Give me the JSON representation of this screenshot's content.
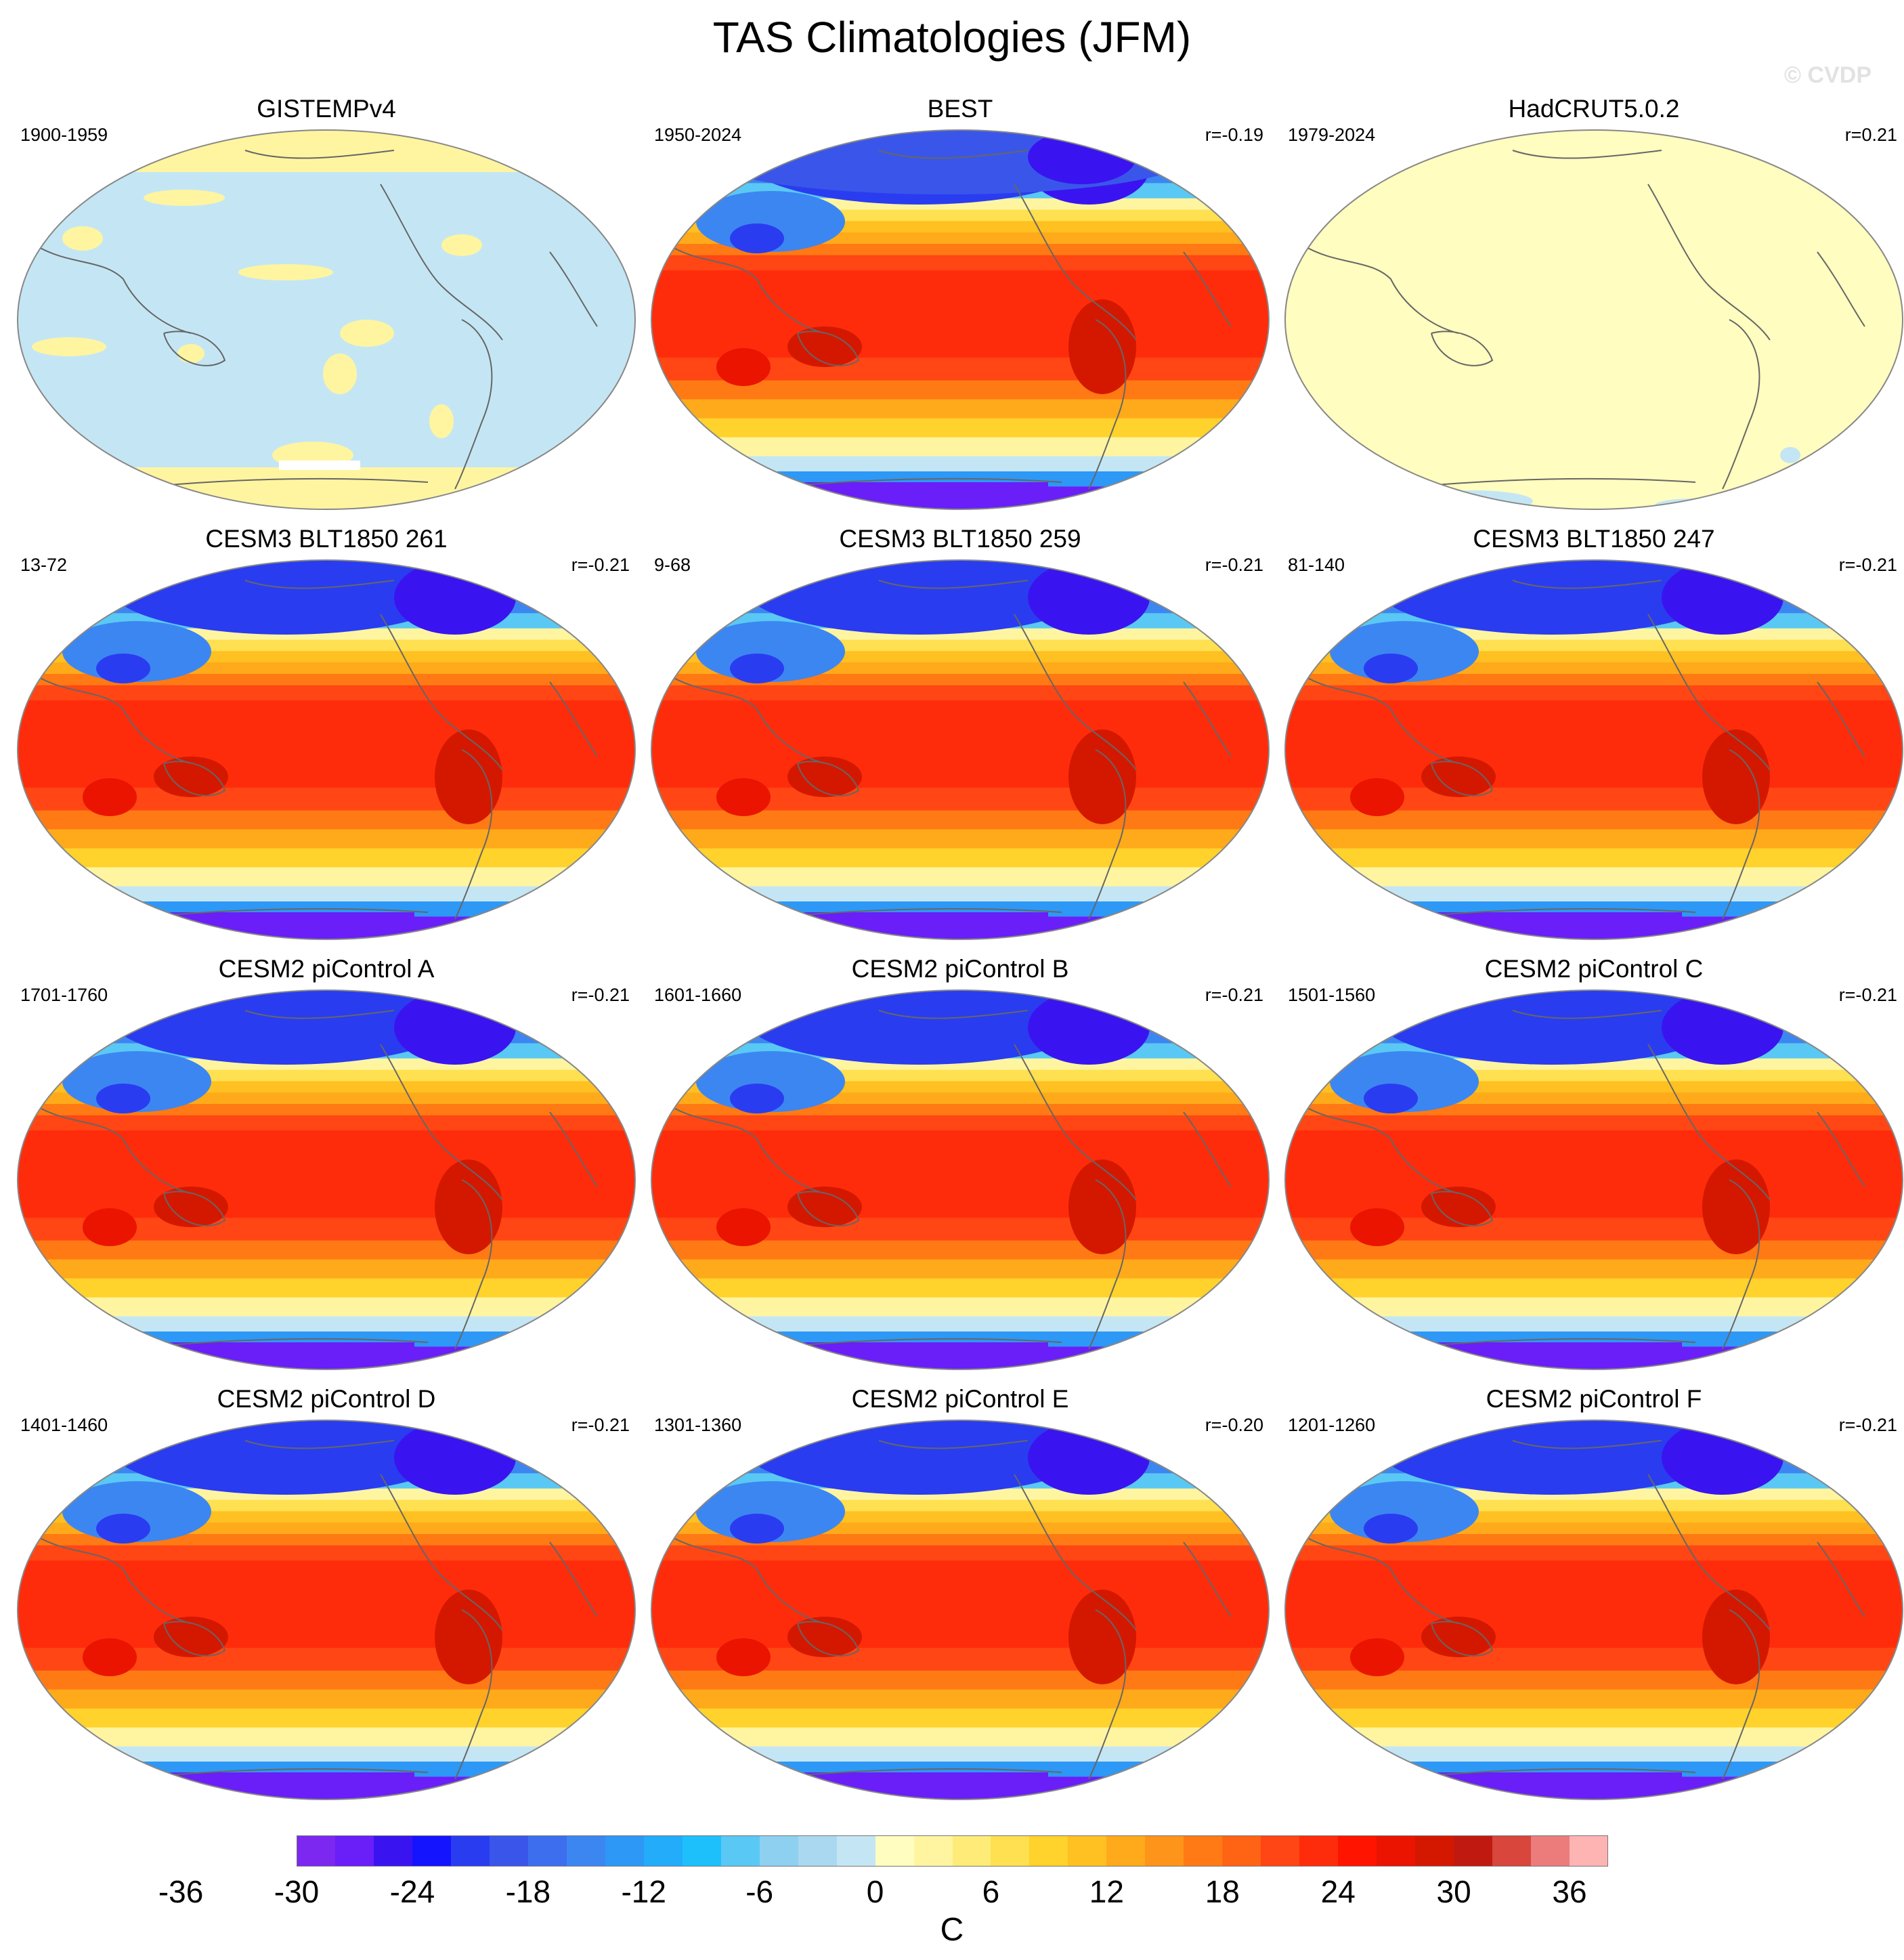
{
  "title": "TAS Climatologies (JFM)",
  "watermark": "© CVDP",
  "units": "C",
  "colorbar": {
    "colors": [
      "#7c28f0",
      "#6a1ef8",
      "#3a14f0",
      "#1414ff",
      "#2a3cf0",
      "#3a56ea",
      "#3c6eee",
      "#3c86f2",
      "#2d98f6",
      "#22acfa",
      "#1ec0fc",
      "#5ac8f4",
      "#8ed0f0",
      "#aad8f0",
      "#c4e6f4",
      "#fffdc0",
      "#fff5a0",
      "#ffec78",
      "#ffe050",
      "#ffd22c",
      "#ffc022",
      "#ffaa1a",
      "#ff941a",
      "#ff7a14",
      "#ff6414",
      "#ff4614",
      "#ff2c0c",
      "#ff1400",
      "#ea1400",
      "#d41800",
      "#c01a10",
      "#d8463c",
      "#ec7c7c",
      "#ffb4b4"
    ],
    "tick_labels": [
      "-36",
      "-30",
      "-24",
      "-18",
      "-12",
      "-6",
      "0",
      "6",
      "12",
      "18",
      "24",
      "30",
      "36"
    ]
  },
  "panels": [
    {
      "title": "GISTEMPv4",
      "period": "1900-1959",
      "corr": "",
      "style": "gistemp"
    },
    {
      "title": "BEST",
      "period": "1950-2024",
      "corr": "r=-0.19",
      "style": "best"
    },
    {
      "title": "HadCRUT5.0.2",
      "period": "1979-2024",
      "corr": "r=0.21",
      "style": "hadcrut"
    },
    {
      "title": "CESM3 BLT1850 261",
      "period": "13-72",
      "corr": "r=-0.21",
      "style": "model"
    },
    {
      "title": "CESM3 BLT1850 259",
      "period": "9-68",
      "corr": "r=-0.21",
      "style": "model"
    },
    {
      "title": "CESM3 BLT1850 247",
      "period": "81-140",
      "corr": "r=-0.21",
      "style": "model"
    },
    {
      "title": "CESM2 piControl A",
      "period": "1701-1760",
      "corr": "r=-0.21",
      "style": "model"
    },
    {
      "title": "CESM2 piControl B",
      "period": "1601-1660",
      "corr": "r=-0.21",
      "style": "model"
    },
    {
      "title": "CESM2 piControl C",
      "period": "1501-1560",
      "corr": "r=-0.21",
      "style": "model"
    },
    {
      "title": "CESM2 piControl D",
      "period": "1401-1460",
      "corr": "r=-0.21",
      "style": "model"
    },
    {
      "title": "CESM2 piControl E",
      "period": "1301-1360",
      "corr": "r=-0.20",
      "style": "model"
    },
    {
      "title": "CESM2 piControl F",
      "period": "1201-1260",
      "corr": "r=-0.21",
      "style": "model"
    }
  ]
}
